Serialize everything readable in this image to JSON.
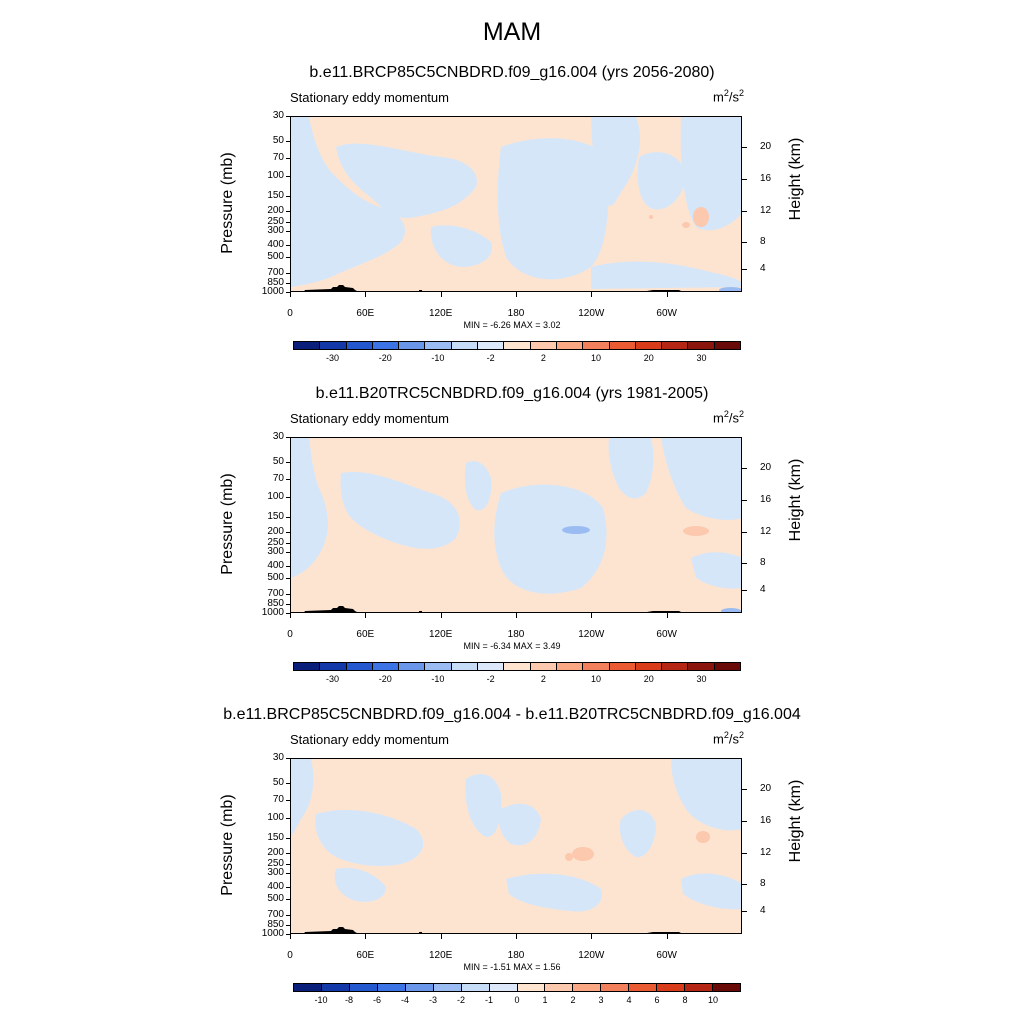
{
  "figure_title": "MAM",
  "chart_data": [
    {
      "type": "heatmap",
      "title": "b.e11.BRCP85C5CNBDRD.f09_g16.004 (yrs 2056-2080)",
      "field": "Stationary eddy momentum",
      "units_base": "m",
      "units_sup1": "2",
      "units_mid": "/s",
      "units_sup2": "2",
      "ylabel": "Pressure (mb)",
      "ylabel_right": "Height (km)",
      "x_ticks": [
        "0",
        "60E",
        "120E",
        "180",
        "120W",
        "60W"
      ],
      "pressure_ticks": [
        "30",
        "50",
        "70",
        "100",
        "150",
        "200",
        "250",
        "300",
        "400",
        "500",
        "700",
        "850",
        "1000"
      ],
      "height_ticks": [
        "20",
        "16",
        "12",
        "8",
        "4"
      ],
      "min_label": "MIN = ",
      "min": "-6.26",
      "max_label": "MAX = ",
      "max": "3.02",
      "colorbar_labels": [
        "-30",
        "-20",
        "-10",
        "-2",
        "2",
        "10",
        "20",
        "30"
      ],
      "colorbar_colors": [
        "#0a1f7a",
        "#1338a8",
        "#2458cf",
        "#3c74e6",
        "#6b97ea",
        "#9bbcf2",
        "#c7dcf7",
        "#dde9fb",
        "#ffe4d0",
        "#fcc8ae",
        "#f9a883",
        "#f3805d",
        "#ea5a33",
        "#d83c1b",
        "#b52614",
        "#8a150c",
        "#6a0a08"
      ],
      "positive_color": "#fde4d1",
      "negative_color": "#d6e6f9"
    },
    {
      "type": "heatmap",
      "title": "b.e11.B20TRC5CNBDRD.f09_g16.004 (yrs 1981-2005)",
      "field": "Stationary eddy momentum",
      "units_base": "m",
      "units_sup1": "2",
      "units_mid": "/s",
      "units_sup2": "2",
      "ylabel": "Pressure (mb)",
      "ylabel_right": "Height (km)",
      "x_ticks": [
        "0",
        "60E",
        "120E",
        "180",
        "120W",
        "60W"
      ],
      "pressure_ticks": [
        "30",
        "50",
        "70",
        "100",
        "150",
        "200",
        "250",
        "300",
        "400",
        "500",
        "700",
        "850",
        "1000"
      ],
      "height_ticks": [
        "20",
        "16",
        "12",
        "8",
        "4"
      ],
      "min_label": "MIN = ",
      "min": "-6.34",
      "max_label": "MAX = ",
      "max": "3.49",
      "colorbar_labels": [
        "-30",
        "-20",
        "-10",
        "-2",
        "2",
        "10",
        "20",
        "30"
      ],
      "colorbar_colors": [
        "#0a1f7a",
        "#1338a8",
        "#2458cf",
        "#3c74e6",
        "#6b97ea",
        "#9bbcf2",
        "#c7dcf7",
        "#dde9fb",
        "#ffe4d0",
        "#fcc8ae",
        "#f9a883",
        "#f3805d",
        "#ea5a33",
        "#d83c1b",
        "#b52614",
        "#8a150c",
        "#6a0a08"
      ],
      "positive_color": "#fde4d1",
      "negative_color": "#d6e6f9"
    },
    {
      "type": "heatmap",
      "title": "b.e11.BRCP85C5CNBDRD.f09_g16.004 - b.e11.B20TRC5CNBDRD.f09_g16.004",
      "field": "Stationary eddy momentum",
      "units_base": "m",
      "units_sup1": "2",
      "units_mid": "/s",
      "units_sup2": "2",
      "ylabel": "Pressure (mb)",
      "ylabel_right": "Height (km)",
      "x_ticks": [
        "0",
        "60E",
        "120E",
        "180",
        "120W",
        "60W"
      ],
      "pressure_ticks": [
        "30",
        "50",
        "70",
        "100",
        "150",
        "200",
        "250",
        "300",
        "400",
        "500",
        "700",
        "850",
        "1000"
      ],
      "height_ticks": [
        "20",
        "16",
        "12",
        "8",
        "4"
      ],
      "min_label": "MIN = ",
      "min": "-1.51",
      "max_label": "MAX = ",
      "max": "1.56",
      "colorbar_labels": [
        "-10",
        "-8",
        "-6",
        "-4",
        "-3",
        "-2",
        "-1",
        "0",
        "1",
        "2",
        "3",
        "4",
        "6",
        "8",
        "10"
      ],
      "colorbar_colors": [
        "#0a1f7a",
        "#1338a8",
        "#2458cf",
        "#3c74e6",
        "#6b97ea",
        "#9bbcf2",
        "#c7dcf7",
        "#dde9fb",
        "#ffe4d0",
        "#fcc8ae",
        "#f9a883",
        "#f3805d",
        "#ea5a33",
        "#d83c1b",
        "#b52614",
        "#6a0a08"
      ],
      "positive_color": "#fde4d1",
      "negative_color": "#d6e6f9"
    }
  ]
}
